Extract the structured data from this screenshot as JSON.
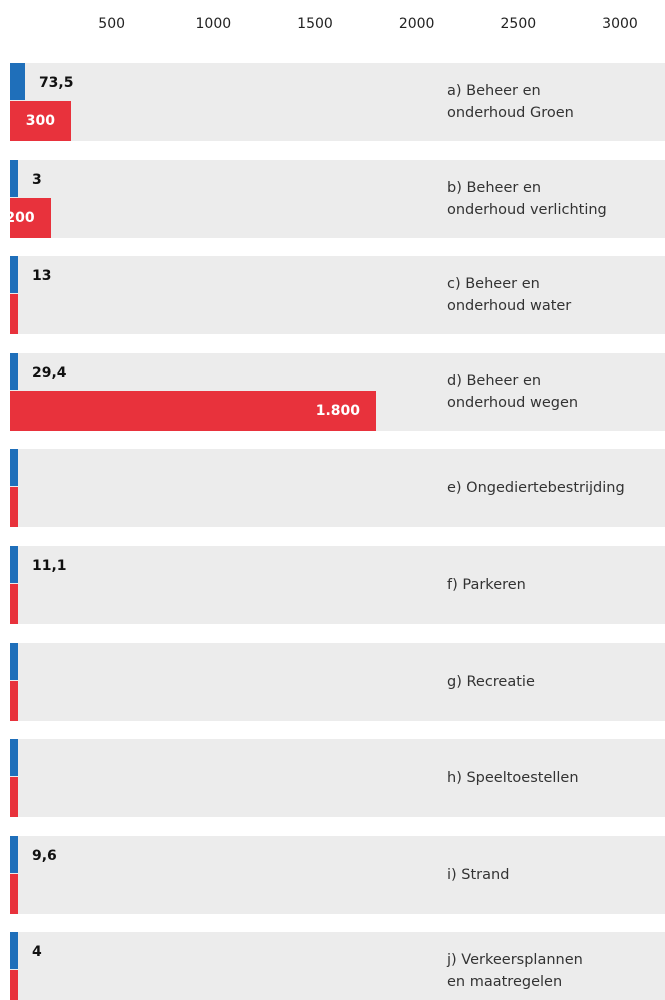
{
  "chart_data": {
    "type": "bar",
    "orientation": "horizontal",
    "categories": [
      "a) Beheer en\nonderhoud Groen",
      "b) Beheer en\nonderhoud verlichting",
      "c) Beheer en\nonderhoud water",
      "d) Beheer en\nonderhoud wegen",
      "e) Ongediertebestrijding",
      "f) Parkeren",
      "g) Recreatie",
      "h) Speeltoestellen",
      "i) Strand",
      "j) Verkeersplannen\nen maatregelen"
    ],
    "series": [
      {
        "color": "#1f6fba",
        "values": [
          73.5,
          3,
          13,
          29.4,
          null,
          11.1,
          null,
          null,
          9.6,
          4
        ],
        "value_labels": [
          "73,5",
          "3",
          "13",
          "29,4",
          null,
          "11,1",
          null,
          null,
          "9,6",
          "4"
        ]
      },
      {
        "color": "#e8323c",
        "values": [
          300,
          200,
          null,
          1800,
          null,
          null,
          null,
          null,
          null,
          null
        ],
        "value_labels": [
          "300",
          "200",
          null,
          "1.800",
          null,
          null,
          null,
          null,
          null,
          null
        ]
      }
    ],
    "xlim": [
      0,
      3000
    ],
    "xticks": [
      500,
      1000,
      1500,
      2000,
      2500,
      3000
    ]
  }
}
